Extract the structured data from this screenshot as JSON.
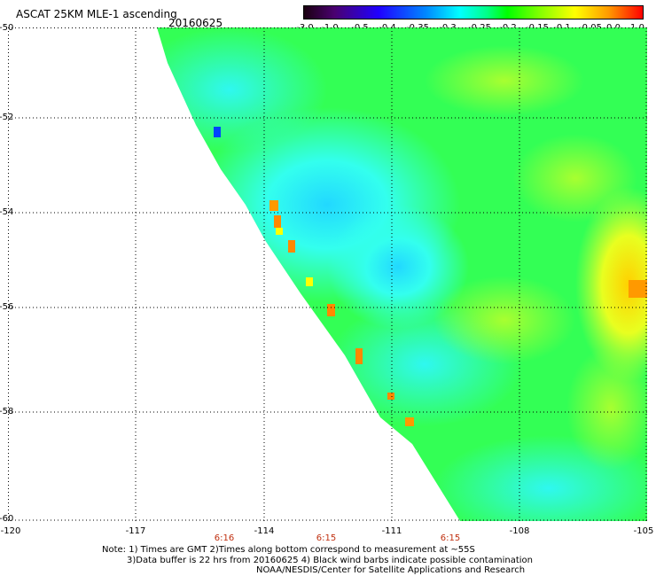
{
  "header": {
    "title": "ASCAT 25KM MLE-1 ascending",
    "date": "20160625"
  },
  "colorbar": {
    "labels": [
      "-3.0",
      "-1.0",
      "-0.5",
      "-0.4",
      "-0.35",
      "-0.3",
      "-0.25",
      "-0.2",
      "-0.15",
      "-0.1",
      "-0.05",
      "0.0",
      "1.0"
    ],
    "colors": [
      "#1a0010",
      "#4a0070",
      "#2000ff",
      "#0088ff",
      "#00ffff",
      "#00ff88",
      "#00ff00",
      "#88ff00",
      "#ffff00",
      "#ff9900",
      "#ff0000"
    ]
  },
  "map": {
    "lat_labels": [
      "-50",
      "-52",
      "-54",
      "-56",
      "-58",
      "-60"
    ],
    "lon_labels": [
      "-120",
      "-117",
      "-114",
      "-111",
      "-108",
      "-105"
    ],
    "time_labels": [
      "6:16",
      "6:15",
      "6:15"
    ],
    "time_color": "#c03010",
    "grid": "dotted"
  },
  "notes": {
    "line1": "Note: 1) Times are GMT 2)Times along bottom correspond to measurement at ~55S",
    "line2": "3)Data buffer is 22 hrs from 20160625 4) Black wind barbs indicate possible contamination",
    "line3": "NOAA/NESDIS/Center for Satellite Applications and Research"
  }
}
